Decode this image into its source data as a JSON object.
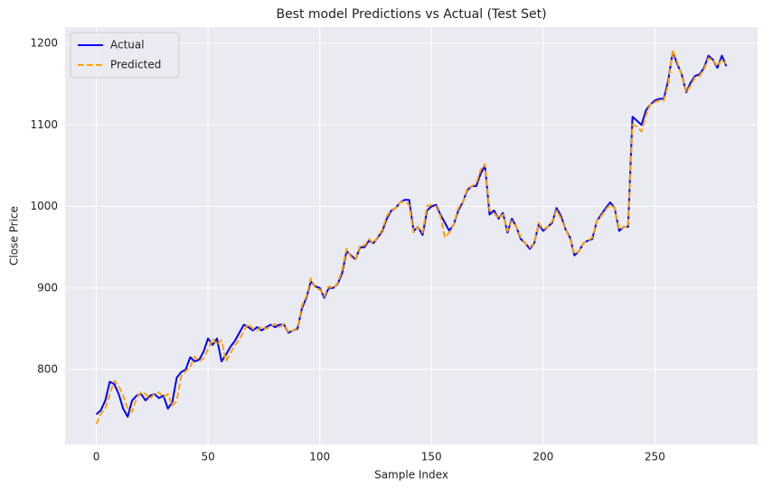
{
  "chart_data": {
    "type": "line",
    "title": "Best model Predictions vs Actual (Test Set)",
    "x_label": "Sample Index",
    "y_label": "Close Price",
    "x": [
      0,
      2,
      4,
      6,
      8,
      10,
      12,
      14,
      16,
      18,
      20,
      22,
      24,
      26,
      28,
      30,
      32,
      34,
      36,
      38,
      40,
      42,
      44,
      46,
      48,
      50,
      52,
      54,
      56,
      58,
      60,
      62,
      64,
      66,
      68,
      70,
      72,
      74,
      76,
      78,
      80,
      82,
      84,
      86,
      88,
      90,
      92,
      94,
      96,
      98,
      100,
      102,
      104,
      106,
      108,
      110,
      112,
      114,
      116,
      118,
      120,
      122,
      124,
      126,
      128,
      130,
      132,
      134,
      136,
      138,
      140,
      142,
      144,
      146,
      148,
      150,
      152,
      154,
      156,
      158,
      160,
      162,
      164,
      166,
      168,
      170,
      172,
      174,
      176,
      178,
      180,
      182,
      184,
      186,
      188,
      190,
      192,
      194,
      196,
      198,
      200,
      202,
      204,
      206,
      208,
      210,
      212,
      214,
      216,
      218,
      220,
      222,
      224,
      226,
      228,
      230,
      232,
      234,
      236,
      238,
      240,
      242,
      244,
      246,
      248,
      250,
      252,
      254,
      256,
      258,
      260,
      262,
      264,
      266,
      268,
      270,
      272,
      274,
      276,
      278,
      280,
      282
    ],
    "series": [
      {
        "name": "Actual",
        "color": "#0000ff",
        "linestyle": "solid",
        "values": [
          745,
          750,
          762,
          785,
          782,
          770,
          752,
          742,
          762,
          768,
          770,
          762,
          768,
          770,
          765,
          768,
          752,
          760,
          790,
          797,
          800,
          815,
          810,
          812,
          822,
          838,
          830,
          838,
          810,
          818,
          828,
          835,
          845,
          855,
          852,
          848,
          852,
          848,
          852,
          855,
          852,
          855,
          855,
          845,
          848,
          850,
          875,
          888,
          908,
          902,
          900,
          888,
          900,
          900,
          905,
          918,
          945,
          940,
          935,
          950,
          950,
          958,
          955,
          962,
          970,
          985,
          995,
          998,
          1005,
          1008,
          1008,
          970,
          975,
          965,
          995,
          1000,
          1002,
          990,
          980,
          970,
          978,
          995,
          1005,
          1020,
          1025,
          1025,
          1040,
          1050,
          990,
          995,
          985,
          992,
          968,
          985,
          975,
          960,
          955,
          948,
          955,
          978,
          970,
          975,
          980,
          998,
          988,
          972,
          962,
          940,
          945,
          955,
          958,
          960,
          982,
          990,
          998,
          1005,
          998,
          970,
          975,
          975,
          1110,
          1105,
          1100,
          1118,
          1125,
          1130,
          1132,
          1132,
          1155,
          1190,
          1175,
          1162,
          1140,
          1152,
          1160,
          1162,
          1170,
          1185,
          1180,
          1170,
          1185,
          1172
        ]
      },
      {
        "name": "Predicted",
        "color": "#ffa500",
        "linestyle": "dashed",
        "values": [
          733,
          746,
          752,
          770,
          786,
          780,
          768,
          752,
          748,
          765,
          772,
          770,
          764,
          770,
          772,
          766,
          770,
          755,
          762,
          792,
          798,
          803,
          816,
          810,
          814,
          825,
          838,
          830,
          836,
          810,
          820,
          830,
          836,
          848,
          856,
          850,
          848,
          853,
          850,
          853,
          856,
          852,
          856,
          846,
          848,
          851,
          878,
          890,
          912,
          900,
          898,
          890,
          902,
          900,
          906,
          922,
          948,
          938,
          935,
          952,
          952,
          960,
          955,
          963,
          972,
          988,
          996,
          998,
          1005,
          1006,
          1002,
          968,
          975,
          968,
          1000,
          1002,
          1000,
          988,
          962,
          968,
          978,
          998,
          1005,
          1022,
          1025,
          1028,
          1045,
          1052,
          995,
          992,
          985,
          990,
          970,
          982,
          975,
          962,
          955,
          950,
          955,
          980,
          972,
          975,
          982,
          995,
          985,
          972,
          960,
          942,
          945,
          955,
          958,
          962,
          982,
          988,
          996,
          1002,
          998,
          972,
          975,
          975,
          1100,
          1098,
          1092,
          1112,
          1125,
          1128,
          1130,
          1130,
          1150,
          1192,
          1178,
          1160,
          1140,
          1148,
          1158,
          1160,
          1168,
          1182,
          1180,
          1172,
          1180,
          1175
        ]
      }
    ],
    "xlim": [
      -14,
      296
    ],
    "ylim": [
      708,
      1220
    ],
    "xticks": [
      0,
      50,
      100,
      150,
      200,
      250
    ],
    "yticks": [
      800,
      900,
      1000,
      1100,
      1200
    ],
    "grid": true,
    "legend": "upper left"
  }
}
